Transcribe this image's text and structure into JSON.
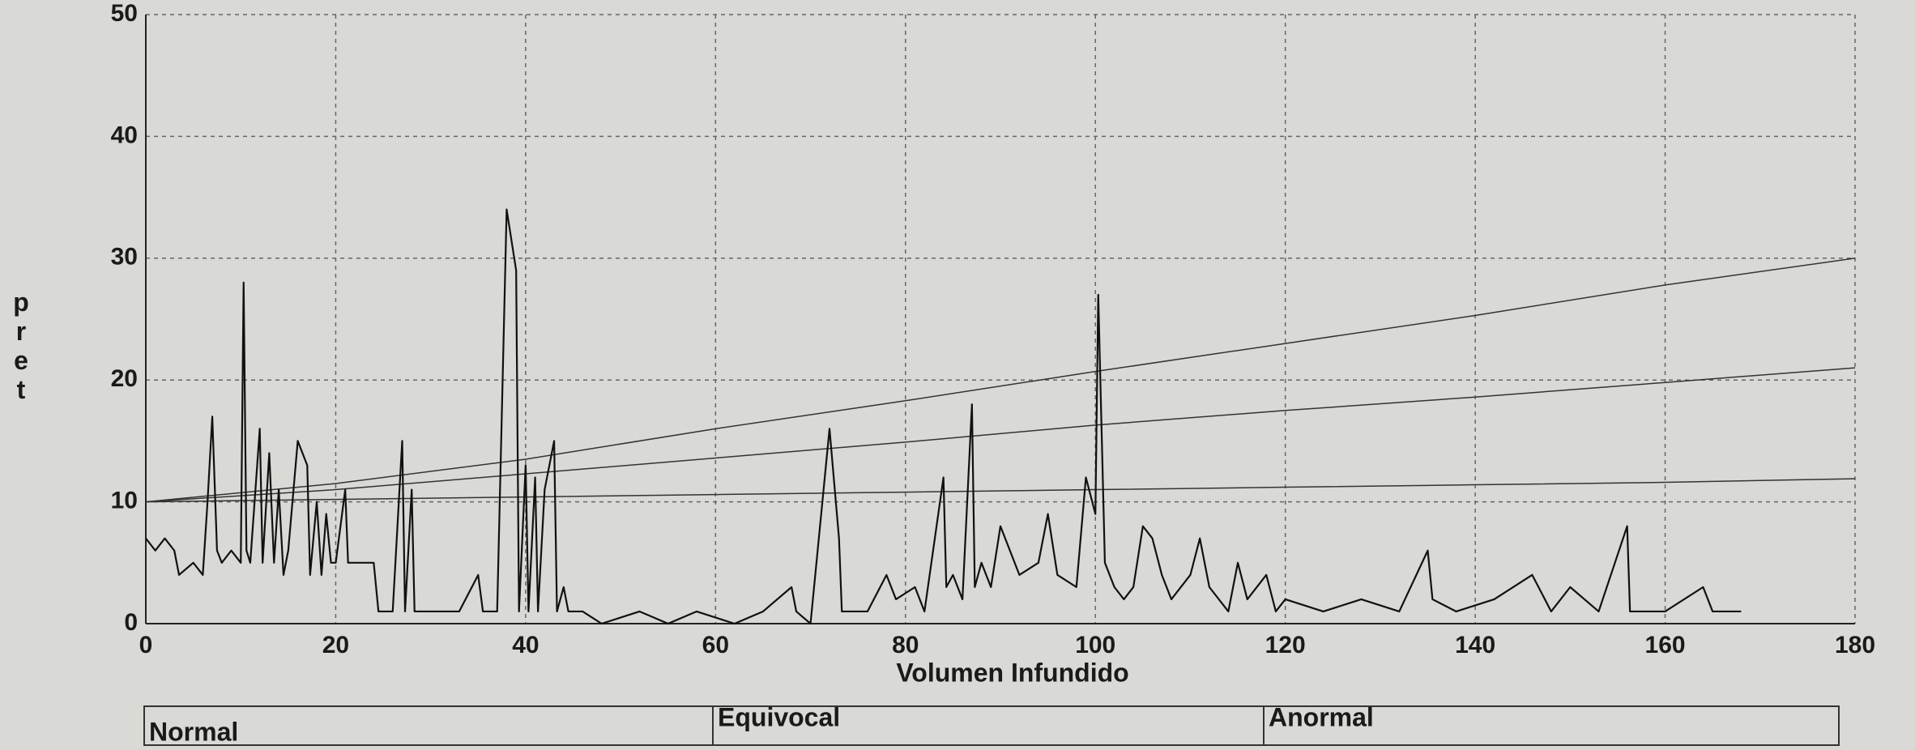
{
  "chart_data": {
    "type": "line",
    "xlabel": "Volumen Infundido",
    "ylabel": "pret",
    "xlim": [
      0,
      180
    ],
    "ylim": [
      0,
      50
    ],
    "xticks": [
      0,
      20,
      40,
      60,
      80,
      100,
      120,
      140,
      160,
      180
    ],
    "yticks": [
      0,
      10,
      20,
      30,
      40,
      50
    ],
    "grid": true,
    "zones": [
      "Normal",
      "Equivocal",
      "Anormal"
    ],
    "series": [
      {
        "color": "#333333",
        "x": [
          0,
          20,
          40,
          60,
          80,
          100,
          120,
          140,
          160,
          180
        ],
        "values": [
          10,
          11.5,
          13.5,
          16,
          18.3,
          20.7,
          23,
          25.3,
          27.8,
          30
        ]
      },
      {
        "color": "#333333",
        "x": [
          0,
          20,
          40,
          60,
          80,
          100,
          120,
          140,
          160,
          180
        ],
        "values": [
          10,
          11,
          12.3,
          13.6,
          14.9,
          16.3,
          17.5,
          18.6,
          19.8,
          21
        ]
      },
      {
        "color": "#333333",
        "x": [
          0,
          20,
          40,
          60,
          80,
          100,
          120,
          140,
          160,
          180
        ],
        "values": [
          10,
          10.2,
          10.4,
          10.6,
          10.8,
          11,
          11.2,
          11.4,
          11.6,
          11.9
        ]
      },
      {
        "color": "#111111",
        "x": [
          0,
          1,
          2,
          3,
          3.5,
          5,
          6,
          6.5,
          7,
          7.5,
          8,
          9,
          10,
          10.3,
          10.6,
          11,
          12,
          12.3,
          13,
          13.5,
          14,
          14.5,
          15,
          16,
          17,
          17.3,
          18,
          18.5,
          19,
          19.5,
          20,
          21,
          21.3,
          24,
          24.5,
          26,
          27,
          27.3,
          28,
          28.3,
          30,
          33,
          35,
          35.5,
          37,
          38,
          39,
          39.3,
          40,
          40.3,
          41,
          41.3,
          42,
          43,
          43.3,
          44,
          44.5,
          46,
          48,
          52,
          55,
          58,
          62,
          65,
          68,
          68.5,
          70,
          72,
          73,
          73.3,
          76,
          78,
          79,
          81,
          82,
          84,
          84.3,
          85,
          86,
          87,
          87.3,
          88,
          89,
          90,
          91,
          92,
          94,
          95,
          96,
          98,
          99,
          100,
          100.3,
          101,
          102,
          103,
          104,
          105,
          106,
          107,
          108,
          110,
          111,
          112,
          114,
          115,
          116,
          118,
          119,
          120,
          124,
          128,
          132,
          135,
          135.5,
          138,
          142,
          146,
          148,
          150,
          153,
          156,
          156.3,
          160,
          164,
          165,
          168
        ],
        "values": [
          7,
          6,
          7,
          6,
          4,
          5,
          4,
          10,
          17,
          6,
          5,
          6,
          5,
          28,
          6,
          5,
          16,
          5,
          14,
          5,
          11,
          4,
          6,
          15,
          13,
          4,
          10,
          4,
          9,
          5,
          5,
          11,
          5,
          5,
          1,
          1,
          15,
          1,
          11,
          1,
          1,
          1,
          4,
          1,
          1,
          34,
          29,
          1,
          13,
          1,
          12,
          1,
          11,
          15,
          1,
          3,
          1,
          1,
          0,
          1,
          0,
          1,
          0,
          1,
          3,
          1,
          0,
          16,
          7,
          1,
          1,
          4,
          2,
          3,
          1,
          12,
          3,
          4,
          2,
          18,
          3,
          5,
          3,
          8,
          6,
          4,
          5,
          9,
          4,
          3,
          12,
          9,
          27,
          5,
          3,
          2,
          3,
          8,
          7,
          4,
          2,
          4,
          7,
          3,
          1,
          5,
          2,
          4,
          1,
          2,
          1,
          2,
          1,
          6,
          2,
          1,
          2,
          4,
          1,
          3,
          1,
          8,
          1,
          1,
          3,
          1,
          1
        ]
      }
    ]
  }
}
